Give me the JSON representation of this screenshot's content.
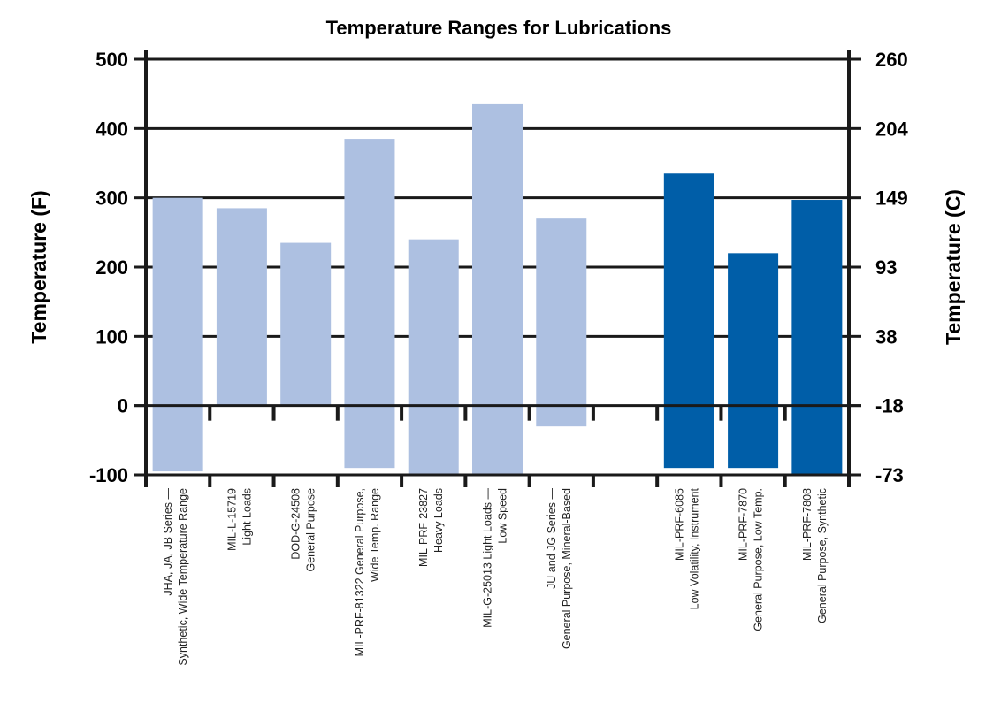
{
  "chart_data": {
    "type": "bar",
    "subtype": "floating-range",
    "title": "Temperature Ranges for Lubrications",
    "ylabel": "Temperature (F)",
    "y2label": "Temperature (C)",
    "ylim": [
      -100,
      500
    ],
    "yticks": [
      "500",
      "400",
      "300",
      "200",
      "100",
      "0",
      "-100"
    ],
    "y2ticks": [
      "260",
      "204",
      "149",
      "93",
      "38",
      "-18",
      "-73"
    ],
    "grid": true,
    "colors": {
      "light": "#adc0e1",
      "dark": "#005ea8",
      "axis": "#1a1a1a"
    },
    "categories": [
      {
        "lines": [
          "JHA, JA, JB Series —",
          "Synthetic, Wide Temperature Range"
        ],
        "low": -95,
        "high": 300,
        "color": "light"
      },
      {
        "lines": [
          "MIL-L-15719",
          "Light Loads"
        ],
        "low": 0,
        "high": 285,
        "color": "light"
      },
      {
        "lines": [
          "DOD-G-24508",
          "General Purpose"
        ],
        "low": 0,
        "high": 235,
        "color": "light"
      },
      {
        "lines": [
          "MIL-PRF-81322 General Purpose,",
          "Wide Temp. Range"
        ],
        "low": -90,
        "high": 385,
        "color": "light"
      },
      {
        "lines": [
          "MIL-PRF-23827",
          "Heavy Loads"
        ],
        "low": -100,
        "high": 240,
        "color": "light"
      },
      {
        "lines": [
          "MIL-G-25013 Light Loads —",
          "Low Speed"
        ],
        "low": -100,
        "high": 435,
        "color": "light"
      },
      {
        "lines": [
          "JU and JG Series —",
          "General Purpose, Mineral-Based"
        ],
        "low": -30,
        "high": 270,
        "color": "light"
      },
      {
        "lines": [
          "",
          ""
        ],
        "low": null,
        "high": null,
        "color": "none"
      },
      {
        "lines": [
          "MIL-PRF-6085",
          "Low Volatility, Instrument"
        ],
        "low": -90,
        "high": 335,
        "color": "dark"
      },
      {
        "lines": [
          "MIL-PRF-7870",
          "General Purpose, Low Temp."
        ],
        "low": -90,
        "high": 220,
        "color": "dark"
      },
      {
        "lines": [
          "MIL-PRF-7808",
          "General Purpose, Synthetic"
        ],
        "low": -100,
        "high": 297,
        "color": "dark"
      }
    ]
  }
}
